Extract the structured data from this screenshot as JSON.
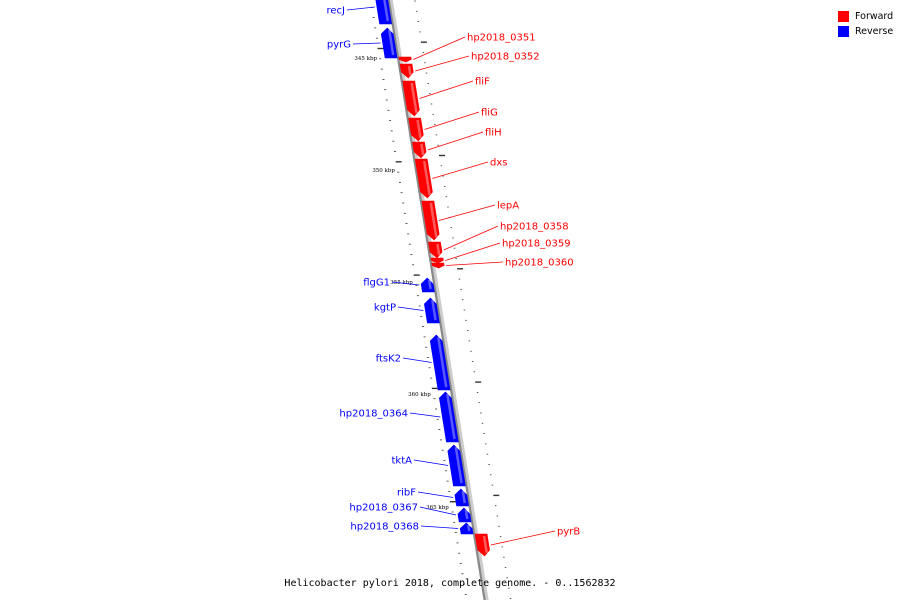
{
  "caption": "Helicobacter pylori 2018, complete genome. - 0..1562832",
  "legend": [
    {
      "label": "Forward",
      "color": "#ff0000"
    },
    {
      "label": "Reverse",
      "color": "#0000ff"
    }
  ],
  "colors": {
    "forward": "#ff0000",
    "reverse": "#0000ff",
    "backbone": "#888888"
  },
  "kbp_labels": [
    "345 kbp",
    "350 kbp",
    "355 kbp",
    "360 kbp",
    "365 kbp"
  ],
  "genes": [
    {
      "name": "recJ",
      "strand": "reverse"
    },
    {
      "name": "pyrG",
      "strand": "reverse"
    },
    {
      "name": "hp2018_0351",
      "strand": "forward"
    },
    {
      "name": "hp2018_0352",
      "strand": "forward"
    },
    {
      "name": "fliF",
      "strand": "forward"
    },
    {
      "name": "fliG",
      "strand": "forward"
    },
    {
      "name": "fliH",
      "strand": "forward"
    },
    {
      "name": "dxs",
      "strand": "forward"
    },
    {
      "name": "lepA",
      "strand": "forward"
    },
    {
      "name": "hp2018_0358",
      "strand": "forward"
    },
    {
      "name": "hp2018_0359",
      "strand": "forward"
    },
    {
      "name": "hp2018_0360",
      "strand": "forward"
    },
    {
      "name": "flgG1",
      "strand": "reverse"
    },
    {
      "name": "kgtP",
      "strand": "reverse"
    },
    {
      "name": "ftsK2",
      "strand": "reverse"
    },
    {
      "name": "hp2018_0364",
      "strand": "reverse"
    },
    {
      "name": "tktA",
      "strand": "reverse"
    },
    {
      "name": "ribF",
      "strand": "reverse"
    },
    {
      "name": "hp2018_0367",
      "strand": "reverse"
    },
    {
      "name": "hp2018_0368",
      "strand": "reverse"
    },
    {
      "name": "pyrB",
      "strand": "forward"
    }
  ]
}
